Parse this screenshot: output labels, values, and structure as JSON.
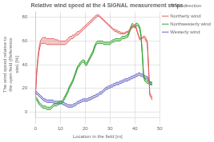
{
  "chart_data": {
    "type": "band",
    "title": "Relative wind speed at the 4 SIGNAL measurement strips",
    "xlabel": "Location in the field [m]",
    "ylabel": "The wind speed relative to the open field (Reference site) [%]",
    "xlim": [
      0,
      50
    ],
    "ylim": [
      -5,
      85
    ],
    "xticks": [
      0,
      10,
      20,
      30,
      40,
      50
    ],
    "yticks": [
      0,
      20,
      40,
      60,
      80
    ],
    "grid": true,
    "legend": "right",
    "legend_title": "Wind direction",
    "x": [
      0,
      0.5,
      1,
      1.5,
      2,
      2.5,
      3,
      3.5,
      4,
      4.5,
      5,
      5.5,
      6,
      6.5,
      7,
      7.5,
      8,
      8.5,
      9,
      9.5,
      10,
      10.5,
      11,
      11.5,
      12,
      12.5,
      13,
      13.5,
      14,
      14.5,
      15,
      15.5,
      16,
      16.5,
      17,
      17.5,
      18,
      18.5,
      19,
      19.5,
      20,
      20.5,
      21,
      21.5,
      22,
      22.5,
      23,
      23.5,
      24,
      24.5,
      25,
      25.5,
      26,
      26.5,
      27,
      27.5,
      28,
      28.5,
      29,
      29.5,
      30,
      30.5,
      31,
      31.5,
      32,
      32.5,
      33,
      33.5,
      34,
      34.5,
      35,
      35.5,
      36,
      36.5,
      37,
      37.5,
      38,
      38.5,
      39,
      39.5,
      40,
      40.5,
      41,
      41.5,
      42,
      42.5,
      43,
      43.5,
      44,
      44.5,
      45,
      45.5,
      46,
      46.5,
      47
    ],
    "series": [
      {
        "name": "Northerly wind",
        "color": "#e06060",
        "values": [
          15,
          35,
          47,
          55,
          60,
          62,
          63,
          63,
          63,
          62,
          62,
          62,
          62,
          62,
          62,
          62,
          61,
          61,
          61,
          60,
          60,
          60,
          60,
          60,
          60,
          61,
          62,
          63,
          64,
          64,
          65,
          65,
          66,
          67,
          68,
          68,
          69,
          70,
          71,
          72,
          73,
          74,
          75,
          76,
          77,
          78,
          79,
          80,
          81,
          82,
          82,
          82,
          81,
          80,
          79,
          78,
          77,
          76,
          75,
          74,
          73,
          72,
          71,
          70,
          70,
          69,
          69,
          68,
          68,
          67,
          67,
          67,
          67,
          68,
          68,
          69,
          70,
          71,
          72,
          73,
          74,
          72,
          68,
          65,
          62,
          62,
          63,
          64,
          64,
          62,
          60,
          40,
          16,
          14,
          12
        ],
        "lower": [
          13,
          32,
          44,
          52,
          57,
          58,
          58,
          58,
          58,
          57,
          57,
          57,
          57,
          57,
          57,
          57,
          57,
          57,
          57,
          57,
          57,
          57,
          57,
          57,
          57,
          58,
          59,
          60,
          61,
          62,
          62,
          63,
          64,
          65,
          65,
          66,
          67,
          68,
          69,
          70,
          71,
          72,
          73,
          74,
          75,
          76,
          77,
          78,
          79,
          80,
          81,
          81,
          80,
          79,
          78,
          77,
          76,
          75,
          74,
          73,
          72,
          71,
          70,
          69,
          68,
          68,
          67,
          67,
          66,
          66,
          66,
          66,
          66,
          67,
          67,
          68,
          69,
          70,
          71,
          72,
          73,
          71,
          67,
          64,
          61,
          61,
          62,
          63,
          62,
          60,
          58,
          37,
          14,
          12,
          10
        ]
      },
      {
        "name": "Northwesterly wind",
        "color": "#30a030",
        "values": [
          13,
          12,
          10,
          8,
          7,
          6,
          5,
          5,
          5,
          4,
          4,
          4,
          4,
          5,
          6,
          7,
          7,
          7,
          8,
          8,
          9,
          9,
          10,
          12,
          14,
          16,
          18,
          21,
          23,
          25,
          27,
          30,
          33,
          36,
          39,
          40,
          42,
          43,
          44,
          44,
          42,
          41,
          43,
          45,
          47,
          49,
          51,
          54,
          57,
          59,
          60,
          60,
          60,
          60,
          60,
          59,
          59,
          59,
          59,
          59,
          59,
          60,
          61,
          61,
          62,
          62,
          62,
          62,
          62,
          63,
          64,
          64,
          64,
          65,
          65,
          67,
          70,
          73,
          75,
          74,
          73,
          75,
          75,
          74,
          72,
          65,
          50,
          32,
          28,
          27,
          26,
          26,
          25,
          25,
          25
        ],
        "lower": [
          11,
          10,
          8,
          6,
          5,
          4,
          3,
          3,
          3,
          2,
          2,
          2,
          2,
          3,
          4,
          5,
          5,
          5,
          6,
          6,
          7,
          7,
          8,
          10,
          12,
          14,
          16,
          19,
          21,
          23,
          25,
          28,
          31,
          34,
          37,
          38,
          40,
          41,
          42,
          42,
          40,
          39,
          41,
          43,
          45,
          47,
          49,
          52,
          55,
          57,
          58,
          58,
          58,
          58,
          58,
          57,
          57,
          57,
          57,
          57,
          57,
          58,
          59,
          59,
          60,
          60,
          60,
          60,
          60,
          61,
          62,
          62,
          62,
          63,
          63,
          65,
          68,
          71,
          73,
          72,
          71,
          73,
          73,
          72,
          70,
          63,
          48,
          30,
          26,
          25,
          24,
          24,
          23,
          23,
          23
        ]
      },
      {
        "name": "Westerly wind",
        "color": "#6060c0",
        "values": [
          17,
          17,
          16,
          15,
          14,
          13,
          12,
          11,
          11,
          10,
          10,
          10,
          10,
          10,
          10,
          9,
          9,
          9,
          9,
          9,
          9,
          9,
          8,
          8,
          7,
          7,
          6,
          6,
          6,
          6,
          6,
          7,
          7,
          8,
          9,
          9,
          10,
          10,
          11,
          11,
          11,
          11,
          11,
          12,
          12,
          13,
          13,
          14,
          14,
          15,
          15,
          16,
          17,
          17,
          18,
          19,
          20,
          21,
          21,
          22,
          22,
          23,
          23,
          24,
          24,
          25,
          25,
          25,
          26,
          26,
          27,
          27,
          28,
          28,
          28,
          29,
          29,
          30,
          30,
          31,
          31,
          32,
          32,
          33,
          33,
          32,
          32,
          31,
          31,
          30,
          30,
          28,
          26,
          25,
          25
        ],
        "lower": [
          15,
          15,
          14,
          13,
          12,
          11,
          10,
          9,
          9,
          8,
          8,
          8,
          8,
          8,
          8,
          7,
          7,
          7,
          7,
          7,
          7,
          7,
          6,
          6,
          5,
          5,
          4,
          4,
          4,
          4,
          4,
          5,
          5,
          6,
          7,
          7,
          8,
          8,
          9,
          9,
          9,
          9,
          9,
          10,
          10,
          11,
          11,
          12,
          12,
          13,
          13,
          14,
          15,
          15,
          16,
          17,
          18,
          19,
          19,
          20,
          20,
          21,
          21,
          22,
          22,
          23,
          23,
          23,
          24,
          24,
          25,
          25,
          26,
          26,
          26,
          27,
          27,
          28,
          28,
          29,
          29,
          30,
          30,
          31,
          31,
          30,
          30,
          29,
          29,
          28,
          28,
          26,
          24,
          23,
          23
        ]
      }
    ]
  }
}
